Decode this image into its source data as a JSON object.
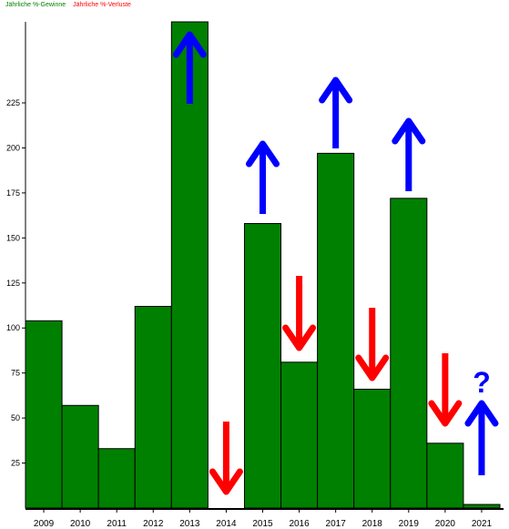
{
  "legend": {
    "gains_label": "Jährliche %-Gewinne",
    "losses_label": "Jährliche %-Verluste",
    "gains_color": "#008000",
    "losses_color": "#ff0000"
  },
  "chart_data": {
    "type": "bar",
    "categories": [
      "2009",
      "2010",
      "2011",
      "2012",
      "2013",
      "2014",
      "2015",
      "2016",
      "2017",
      "2018",
      "2019",
      "2020",
      "2021"
    ],
    "series": [
      {
        "name": "Jährliche %-Gewinne",
        "color": "#008000",
        "values": [
          104,
          57,
          33,
          112,
          270,
          0,
          158,
          81,
          197,
          66,
          172,
          36,
          2
        ]
      }
    ],
    "y_ticks": [
      25,
      50,
      75,
      100,
      125,
      150,
      175,
      200,
      225
    ],
    "ylim": [
      0,
      270
    ],
    "grid": false,
    "legend_position": "top-left",
    "annotations": [
      {
        "category": "2013",
        "direction": "up",
        "color": "#0000ff"
      },
      {
        "category": "2014",
        "direction": "down",
        "color": "#ff0000"
      },
      {
        "category": "2015",
        "direction": "up",
        "color": "#0000ff"
      },
      {
        "category": "2016",
        "direction": "down",
        "color": "#ff0000"
      },
      {
        "category": "2017",
        "direction": "up",
        "color": "#0000ff"
      },
      {
        "category": "2018",
        "direction": "down",
        "color": "#ff0000"
      },
      {
        "category": "2019",
        "direction": "up",
        "color": "#0000ff"
      },
      {
        "category": "2020",
        "direction": "down",
        "color": "#ff0000"
      },
      {
        "category": "2021",
        "direction": "up",
        "color": "#0000ff",
        "text": "?"
      }
    ]
  }
}
